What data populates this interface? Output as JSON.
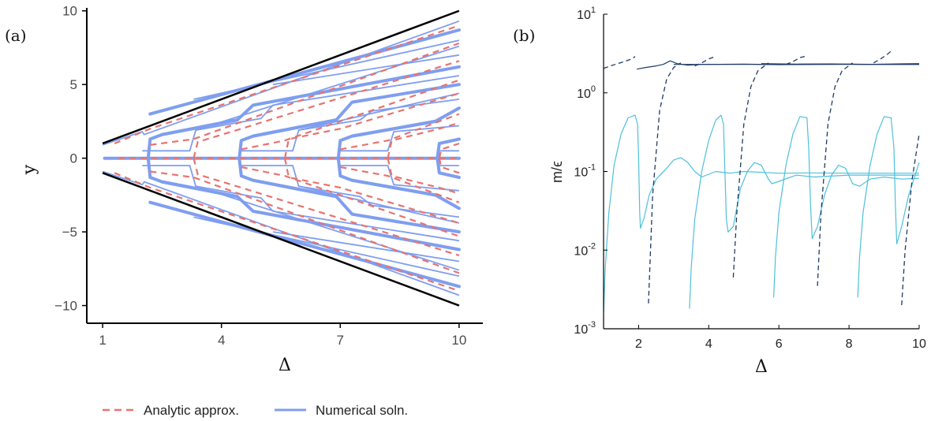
{
  "chart_data": [
    {
      "panel_label": "(a)",
      "type": "line",
      "xlabel": "Δ",
      "ylabel": "y",
      "xlim": [
        0.6,
        10.6
      ],
      "ylim": [
        -11.2,
        10.2
      ],
      "xticks": [
        1,
        4,
        7,
        10
      ],
      "yticks": [
        10,
        5,
        0,
        -5,
        -10
      ],
      "ytick_labels": [
        "10",
        "5",
        "0",
        "−5",
        "−10"
      ],
      "boundary_color": "#000000",
      "legend": {
        "placement": "bottom",
        "entries": [
          {
            "label": "Analytic approx.",
            "style": "dashed",
            "color": "#e8736f"
          },
          {
            "label": "Numerical soln.",
            "style": "solid",
            "color": "#7f9ef0"
          }
        ]
      },
      "boundaries": {
        "upper": [
          [
            1,
            1
          ],
          [
            10,
            10
          ]
        ],
        "lower": [
          [
            1,
            -1
          ],
          [
            10,
            -10
          ]
        ]
      },
      "numerical_series_thick": [
        {
          "x": [
            1.05,
            1.05,
            10
          ],
          "y": [
            0,
            0,
            0
          ]
        },
        {
          "x": [
            2.15,
            2.2,
            2.5,
            4.4
          ],
          "y": [
            0,
            1.3,
            1.6,
            2.6
          ]
        },
        {
          "x": [
            2.15,
            2.2,
            2.5,
            4.4
          ],
          "y": [
            0,
            -1.3,
            -1.6,
            -2.6
          ]
        },
        {
          "x": [
            4.45,
            4.5,
            4.8,
            6.9
          ],
          "y": [
            0,
            1.2,
            1.5,
            2.6
          ]
        },
        {
          "x": [
            4.45,
            4.5,
            4.8,
            6.9
          ],
          "y": [
            0,
            -1.2,
            -1.5,
            -2.6
          ]
        },
        {
          "x": [
            6.95,
            7.0,
            7.3,
            9.4
          ],
          "y": [
            0,
            1.2,
            1.5,
            2.5
          ]
        },
        {
          "x": [
            6.95,
            7.0,
            7.3,
            9.4
          ],
          "y": [
            0,
            -1.2,
            -1.5,
            -2.5
          ]
        },
        {
          "x": [
            9.45,
            9.5,
            10
          ],
          "y": [
            0,
            1.0,
            1.3
          ]
        },
        {
          "x": [
            9.45,
            9.5,
            10
          ],
          "y": [
            0,
            -1.0,
            -1.3
          ]
        },
        {
          "x": [
            2.5,
            4.4,
            4.8,
            10
          ],
          "y": [
            1.6,
            2.6,
            3.6,
            6.2
          ]
        },
        {
          "x": [
            2.5,
            4.4,
            4.8,
            10
          ],
          "y": [
            -1.6,
            -2.6,
            -3.6,
            -6.2
          ]
        },
        {
          "x": [
            4.8,
            6.9,
            7.3,
            10
          ],
          "y": [
            1.5,
            2.6,
            3.8,
            5.0
          ]
        },
        {
          "x": [
            4.8,
            6.9,
            7.3,
            10
          ],
          "y": [
            -1.5,
            -2.6,
            -3.8,
            -5.0
          ]
        },
        {
          "x": [
            7.3,
            9.4,
            10
          ],
          "y": [
            1.5,
            2.5,
            3.4
          ]
        },
        {
          "x": [
            7.3,
            9.4,
            10
          ],
          "y": [
            -1.5,
            -2.5,
            -3.4
          ]
        },
        {
          "x": [
            2.2,
            10
          ],
          "y": [
            3.0,
            8.7
          ]
        },
        {
          "x": [
            2.2,
            10
          ],
          "y": [
            -3.0,
            -8.7
          ]
        }
      ],
      "numerical_series_thin": [
        {
          "x": [
            1.0,
            2.0,
            2.05,
            10
          ],
          "y": [
            0.9,
            1.8,
            1.6,
            9.3
          ]
        },
        {
          "x": [
            1.0,
            2.0,
            2.05,
            10
          ],
          "y": [
            -0.9,
            -1.8,
            -1.6,
            -9.3
          ]
        },
        {
          "x": [
            2.0,
            3.2,
            3.35,
            10
          ],
          "y": [
            0.5,
            0.5,
            1.9,
            7.6
          ]
        },
        {
          "x": [
            2.0,
            3.2,
            3.35,
            10
          ],
          "y": [
            -0.5,
            -0.5,
            -1.9,
            -7.6
          ]
        },
        {
          "x": [
            3.35,
            5.0,
            5.3,
            10
          ],
          "y": [
            1.9,
            2.7,
            3.6,
            5.6
          ]
        },
        {
          "x": [
            3.35,
            5.0,
            5.3,
            10
          ],
          "y": [
            -1.9,
            -2.7,
            -3.6,
            -5.6
          ]
        },
        {
          "x": [
            4.5,
            5.8,
            5.95,
            10
          ],
          "y": [
            0.5,
            0.5,
            1.9,
            4.4
          ]
        },
        {
          "x": [
            4.5,
            5.8,
            5.95,
            10
          ],
          "y": [
            -0.5,
            -0.5,
            -1.9,
            -4.4
          ]
        },
        {
          "x": [
            5.95,
            7.5,
            7.8,
            10
          ],
          "y": [
            1.9,
            2.6,
            3.2,
            4.0
          ]
        },
        {
          "x": [
            5.95,
            7.5,
            7.8,
            10
          ],
          "y": [
            -1.9,
            -2.6,
            -3.2,
            -4.0
          ]
        },
        {
          "x": [
            7.0,
            8.2,
            8.35,
            10
          ],
          "y": [
            0.5,
            0.5,
            1.8,
            2.2
          ]
        },
        {
          "x": [
            7.0,
            8.2,
            8.35,
            10
          ],
          "y": [
            -0.5,
            -0.5,
            -1.8,
            -2.2
          ]
        },
        {
          "x": [
            9.5,
            10
          ],
          "y": [
            0.5,
            0.5
          ]
        },
        {
          "x": [
            9.5,
            10
          ],
          "y": [
            -0.5,
            -0.5
          ]
        },
        {
          "x": [
            3.3,
            10
          ],
          "y": [
            4.0,
            8.0
          ]
        },
        {
          "x": [
            3.3,
            10
          ],
          "y": [
            -4.0,
            -8.0
          ]
        },
        {
          "x": [
            5.3,
            10
          ],
          "y": [
            5.0,
            7.0
          ]
        },
        {
          "x": [
            5.3,
            10
          ],
          "y": [
            -5.0,
            -7.0
          ]
        }
      ],
      "analytic_series": [
        {
          "x": [
            1.4,
            10
          ],
          "y": [
            0,
            0
          ]
        },
        {
          "x": [
            1.3,
            2.2,
            10
          ],
          "y": [
            1.0,
            2.0,
            9.0
          ]
        },
        {
          "x": [
            1.3,
            2.2,
            10
          ],
          "y": [
            -1.0,
            -2.0,
            -9.0
          ]
        },
        {
          "x": [
            2.2,
            3.3,
            10
          ],
          "y": [
            0.9,
            1.3,
            7.8
          ]
        },
        {
          "x": [
            2.2,
            3.3,
            10
          ],
          "y": [
            -0.9,
            -1.3,
            -7.8
          ]
        },
        {
          "x": [
            3.3,
            3.4,
            4.5,
            10
          ],
          "y": [
            0,
            1.1,
            2.0,
            6.6
          ]
        },
        {
          "x": [
            3.3,
            3.4,
            4.5,
            10
          ],
          "y": [
            0,
            -1.1,
            -2.0,
            -6.6
          ]
        },
        {
          "x": [
            4.5,
            5.6,
            10
          ],
          "y": [
            0.6,
            1.2,
            5.3
          ]
        },
        {
          "x": [
            4.5,
            5.6,
            10
          ],
          "y": [
            -0.6,
            -1.2,
            -5.3
          ]
        },
        {
          "x": [
            5.6,
            5.7,
            7.0,
            10
          ],
          "y": [
            0,
            1.3,
            2.0,
            4.4
          ]
        },
        {
          "x": [
            5.6,
            5.7,
            7.0,
            10
          ],
          "y": [
            0,
            -1.3,
            -2.0,
            -4.4
          ]
        },
        {
          "x": [
            7.0,
            8.2,
            10
          ],
          "y": [
            0.6,
            1.2,
            3.0
          ]
        },
        {
          "x": [
            7.0,
            8.2,
            10
          ],
          "y": [
            -0.6,
            -1.2,
            -3.0
          ]
        },
        {
          "x": [
            8.2,
            8.3,
            9.5,
            10
          ],
          "y": [
            0,
            1.2,
            2.0,
            2.4
          ]
        },
        {
          "x": [
            8.2,
            8.3,
            9.5,
            10
          ],
          "y": [
            0,
            -1.2,
            -2.0,
            -2.4
          ]
        },
        {
          "x": [
            9.5,
            9.55,
            10
          ],
          "y": [
            0,
            0.6,
            1.0
          ]
        },
        {
          "x": [
            9.5,
            9.55,
            10
          ],
          "y": [
            0,
            -0.6,
            -1.0
          ]
        }
      ]
    },
    {
      "panel_label": "(b)",
      "type": "line",
      "xlabel": "Δ",
      "ylabel": "m/ϵ",
      "yscale": "log",
      "xlim": [
        1,
        10
      ],
      "ylim": [
        0.001,
        10
      ],
      "xticks": [
        2,
        4,
        6,
        8,
        10
      ],
      "yticks": [
        {
          "base": "10",
          "exp": "1",
          "value": 10
        },
        {
          "base": "10",
          "exp": "0",
          "value": 1
        },
        {
          "base": "10",
          "exp": "-1",
          "value": 0.1
        },
        {
          "base": "10",
          "exp": "-2",
          "value": 0.01
        },
        {
          "base": "10",
          "exp": "-3",
          "value": 0.001
        }
      ],
      "colors": {
        "dark": "#1f3a66",
        "light": "#4ec0dc"
      },
      "dark_dashed_series": [
        {
          "x": [
            1.0,
            1.2,
            1.4,
            1.6,
            1.8,
            1.9
          ],
          "y": [
            2.05,
            2.2,
            2.35,
            2.5,
            2.7,
            2.9
          ]
        },
        {
          "x": [
            2.28,
            2.4,
            2.6,
            2.8,
            3.0,
            3.2
          ],
          "y": [
            0.0021,
            0.05,
            0.6,
            1.5,
            2.1,
            2.4
          ]
        },
        {
          "x": [
            4.7,
            4.8,
            5.0,
            5.2,
            5.4,
            5.7
          ],
          "y": [
            0.0045,
            0.03,
            0.4,
            1.2,
            1.9,
            2.4
          ]
        },
        {
          "x": [
            7.1,
            7.2,
            7.4,
            7.6,
            7.8,
            8.1
          ],
          "y": [
            0.0035,
            0.03,
            0.4,
            1.2,
            1.9,
            2.4
          ]
        },
        {
          "x": [
            9.5,
            9.6,
            9.8,
            10.0
          ],
          "y": [
            0.002,
            0.01,
            0.08,
            0.3
          ]
        },
        {
          "x": [
            3.6,
            3.8,
            4.0,
            4.2
          ],
          "y": [
            2.2,
            2.4,
            2.7,
            2.9
          ]
        },
        {
          "x": [
            6.2,
            6.4,
            6.6,
            6.8
          ],
          "y": [
            2.3,
            2.5,
            2.8,
            2.95
          ]
        },
        {
          "x": [
            8.7,
            8.9,
            9.1,
            9.2
          ],
          "y": [
            2.4,
            2.7,
            3.1,
            3.4
          ]
        }
      ],
      "dark_solid_series": [
        {
          "x": [
            1.95,
            2.2,
            2.5,
            2.7,
            2.9,
            3.1,
            3.4,
            3.8,
            4.5,
            6,
            8,
            10
          ],
          "y": [
            2.0,
            2.1,
            2.2,
            2.3,
            2.55,
            2.35,
            2.25,
            2.3,
            2.3,
            2.3,
            2.3,
            2.3
          ]
        },
        {
          "x": [
            3.0,
            4,
            5,
            6,
            7,
            8,
            9,
            10
          ],
          "y": [
            2.3,
            2.3,
            2.32,
            2.28,
            2.3,
            2.32,
            2.3,
            2.3
          ]
        },
        {
          "x": [
            5.5,
            6.5,
            7.5,
            8.5,
            10
          ],
          "y": [
            2.35,
            2.32,
            2.33,
            2.3,
            2.35
          ]
        }
      ],
      "light_solid_series": [
        {
          "x": [
            1.0,
            1.05,
            1.15,
            1.3,
            1.5,
            1.7,
            1.9,
            1.97,
            2.0,
            2.03,
            2.05,
            2.15
          ],
          "y": [
            0.0016,
            0.006,
            0.03,
            0.12,
            0.3,
            0.48,
            0.52,
            0.4,
            0.15,
            0.03,
            0.019,
            0.025
          ]
        },
        {
          "x": [
            2.15,
            2.3,
            2.5,
            2.8,
            3.0,
            3.2,
            3.4,
            3.6,
            3.8,
            4.2,
            4.6,
            5.0,
            6,
            7,
            8,
            9,
            10
          ],
          "y": [
            0.025,
            0.05,
            0.08,
            0.11,
            0.14,
            0.15,
            0.13,
            0.1,
            0.085,
            0.1,
            0.095,
            0.1,
            0.095,
            0.096,
            0.095,
            0.095,
            0.095
          ]
        },
        {
          "x": [
            3.45,
            3.5,
            3.6,
            3.8,
            4.0,
            4.2,
            4.35,
            4.42,
            4.46,
            4.5,
            4.55,
            4.7
          ],
          "y": [
            0.0018,
            0.006,
            0.025,
            0.1,
            0.25,
            0.45,
            0.52,
            0.4,
            0.1,
            0.025,
            0.017,
            0.02
          ]
        },
        {
          "x": [
            4.7,
            4.9,
            5.1,
            5.3,
            5.5,
            5.7,
            5.8,
            6,
            6.5,
            7,
            8,
            9,
            10
          ],
          "y": [
            0.02,
            0.06,
            0.1,
            0.13,
            0.12,
            0.08,
            0.07,
            0.075,
            0.09,
            0.085,
            0.09,
            0.09,
            0.09
          ]
        },
        {
          "x": [
            5.85,
            5.9,
            6.0,
            6.2,
            6.4,
            6.6,
            6.8,
            6.85,
            6.9,
            6.95,
            7.1
          ],
          "y": [
            0.0025,
            0.008,
            0.03,
            0.12,
            0.3,
            0.5,
            0.48,
            0.2,
            0.04,
            0.014,
            0.02
          ]
        },
        {
          "x": [
            7.1,
            7.3,
            7.5,
            7.7,
            7.9,
            8.1,
            8.3,
            8.6,
            9,
            9.5,
            10
          ],
          "y": [
            0.02,
            0.05,
            0.09,
            0.12,
            0.11,
            0.07,
            0.065,
            0.08,
            0.085,
            0.08,
            0.082
          ]
        },
        {
          "x": [
            8.25,
            8.3,
            8.4,
            8.6,
            8.8,
            9.0,
            9.2,
            9.28,
            9.32,
            9.36,
            9.5,
            9.7,
            10
          ],
          "y": [
            0.0025,
            0.008,
            0.03,
            0.12,
            0.3,
            0.5,
            0.48,
            0.2,
            0.04,
            0.012,
            0.02,
            0.05,
            0.13
          ]
        }
      ]
    }
  ]
}
